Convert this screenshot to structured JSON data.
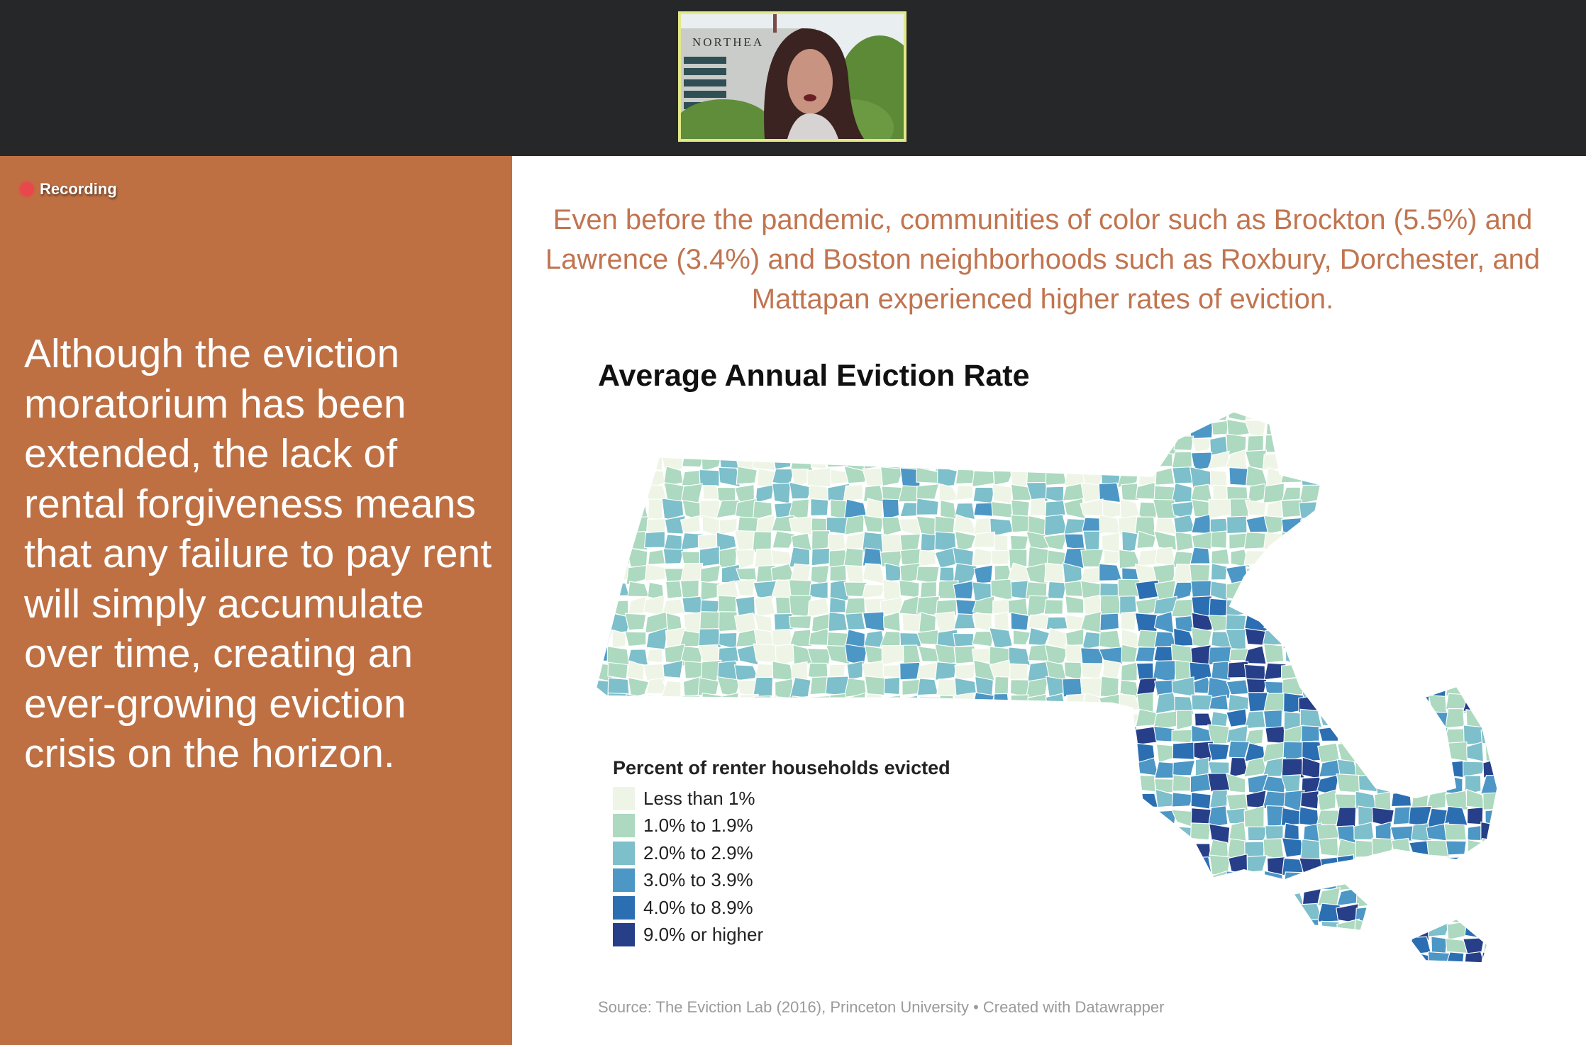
{
  "meeting": {
    "recording_label": "Recording",
    "video_tile": {
      "sign_text": "NORTHEA",
      "border_color": "#e3e889"
    }
  },
  "slide": {
    "left_panel": {
      "background": "#bf7043",
      "text": "Although the eviction moratorium has been extended, the lack of rental forgiveness means that any failure to pay rent will simply accumulate over time, creating an ever-growing eviction crisis on the horizon."
    },
    "headline": "Even before the pandemic, communities of color such as Brockton (5.5%) and Lawrence (3.4%) and Boston neighborhoods such as Roxbury, Dorchester, and Mattapan experienced higher rates of eviction.",
    "map": {
      "title": "Average Annual Eviction Rate",
      "legend_title": "Percent of renter households evicted",
      "legend": [
        {
          "label": "Less than 1%",
          "color": "#eef5e6"
        },
        {
          "label": "1.0% to 1.9%",
          "color": "#acd9bf"
        },
        {
          "label": "2.0% to 2.9%",
          "color": "#7dbfcb"
        },
        {
          "label": "3.0% to 3.9%",
          "color": "#4c97c5"
        },
        {
          "label": "4.0% to 8.9%",
          "color": "#2b6fb2"
        },
        {
          "label": "9.0% or higher",
          "color": "#263f88"
        }
      ],
      "source": "Source: The Eviction Lab (2016), Princeton University • Created with Datawrapper"
    }
  }
}
